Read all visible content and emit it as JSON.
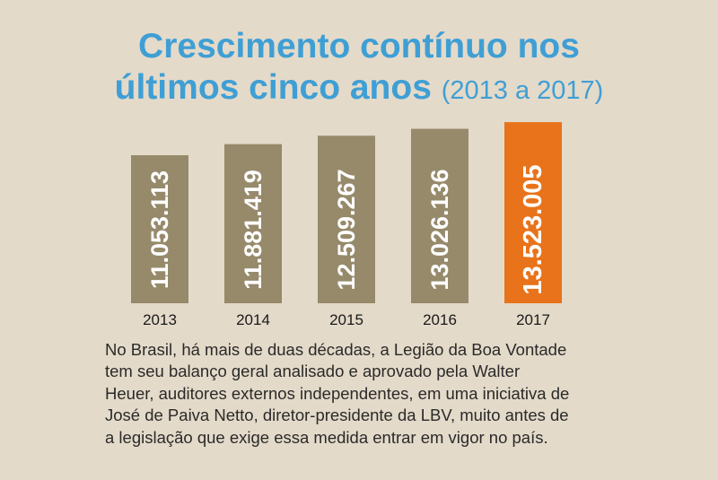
{
  "title": {
    "line1": "Crescimento contínuo nos",
    "line2": "últimos cinco anos",
    "subtitle": "(2013 a 2017)"
  },
  "chart_data": {
    "type": "bar",
    "title": "Crescimento contínuo nos últimos cinco anos (2013 a 2017)",
    "categories": [
      "2013",
      "2014",
      "2015",
      "2016",
      "2017"
    ],
    "values": [
      11053113,
      11881419,
      12509267,
      13026136,
      13523005
    ],
    "labels": [
      "11.053.113",
      "11.881.419",
      "12.509.267",
      "13.026.136",
      "13.523.005"
    ],
    "highlight_index": 4,
    "colors": {
      "bar": "#968a6b",
      "highlight": "#e8731b",
      "label": "#ffffff"
    },
    "grid": false,
    "legend": "none"
  },
  "paragraph": {
    "lines": [
      "No Brasil, há mais de duas décadas, a Legião da Boa Vontade",
      "tem seu balanço geral analisado e aprovado pela Walter",
      "Heuer, auditores externos independentes, em uma iniciativa de",
      "José de Paiva Netto, diretor-presidente da LBV, muito antes de",
      "a legislação que exige essa medida entrar em vigor no país."
    ]
  }
}
